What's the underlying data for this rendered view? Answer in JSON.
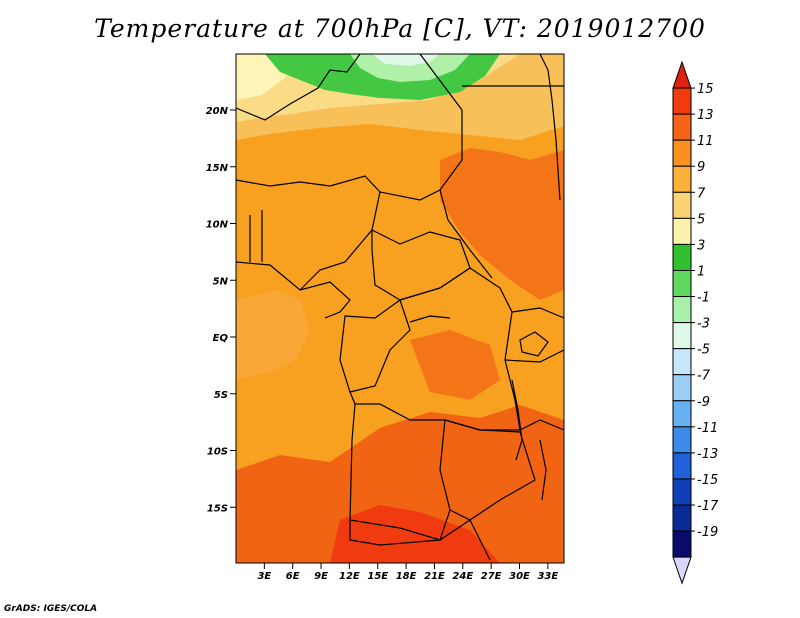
{
  "title": "Temperature at 700hPa [C], VT: 2019012700",
  "credit": "GrADS: IGES/COLA",
  "map": {
    "lat_ticks": [
      {
        "label": "20N",
        "lat": 20
      },
      {
        "label": "15N",
        "lat": 15
      },
      {
        "label": "10N",
        "lat": 10
      },
      {
        "label": "5N",
        "lat": 5
      },
      {
        "label": "EQ",
        "lat": 0
      },
      {
        "label": "5S",
        "lat": -5
      },
      {
        "label": "10S",
        "lat": -10
      },
      {
        "label": "15S",
        "lat": -15
      }
    ],
    "lon_ticks": [
      {
        "label": "3E",
        "lon": 3
      },
      {
        "label": "6E",
        "lon": 6
      },
      {
        "label": "9E",
        "lon": 9
      },
      {
        "label": "12E",
        "lon": 12
      },
      {
        "label": "15E",
        "lon": 15
      },
      {
        "label": "18E",
        "lon": 18
      },
      {
        "label": "21E",
        "lon": 21
      },
      {
        "label": "24E",
        "lon": 24
      },
      {
        "label": "27E",
        "lon": 27
      },
      {
        "label": "30E",
        "lon": 30
      },
      {
        "label": "33E",
        "lon": 33
      }
    ]
  },
  "colorbar": {
    "labels": [
      "15",
      "13",
      "11",
      "9",
      "7",
      "5",
      "3",
      "1",
      "-1",
      "-3",
      "-5",
      "-7",
      "-9",
      "-11",
      "-13",
      "-15",
      "-17",
      "-19"
    ],
    "colors": [
      "#e02010",
      "#f03c0c",
      "#f56418",
      "#f8911e",
      "#fbb13a",
      "#fbd374",
      "#fbf2ac",
      "#30c030",
      "#60d860",
      "#a8f0a8",
      "#dff8e8",
      "#c8e6fb",
      "#9ccff8",
      "#68b0f4",
      "#3c8ae8",
      "#2060d8",
      "#1040b8",
      "#0a2a96",
      "#0a0a6c",
      "#d8d8ff"
    ]
  },
  "regions": {
    "background": "#f8a020",
    "sahara": "#f8c058",
    "north_band": "#fbdc86",
    "pale_band": "#fff4b8",
    "green_cold": "#44c844",
    "light_green": "#b0f0a8",
    "warm_east": "#f47418",
    "warm_south": "#f06414",
    "hot_spot": "#f03a10"
  }
}
